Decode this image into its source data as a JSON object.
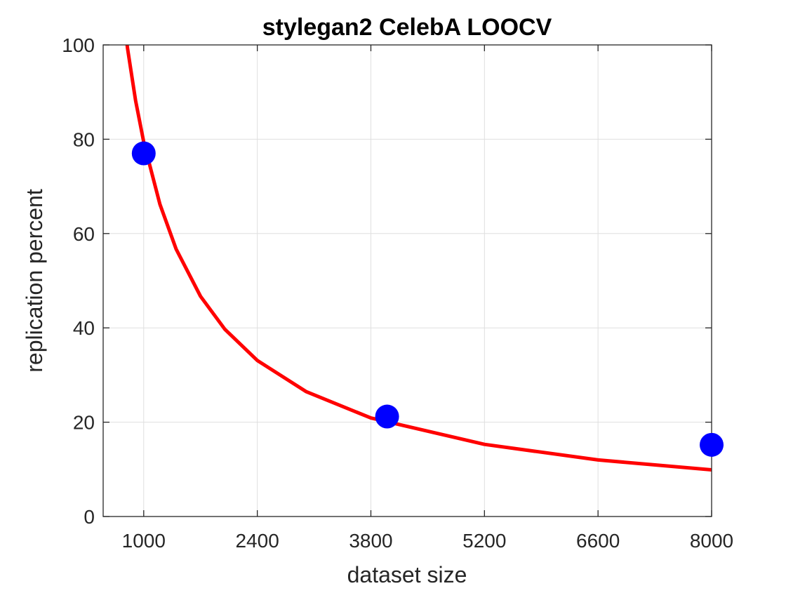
{
  "chart_data": {
    "type": "scatter",
    "title": "stylegan2 CelebA LOOCV",
    "xlabel": "dataset size",
    "ylabel": "replication percent",
    "xlim": [
      500,
      8000
    ],
    "ylim": [
      0,
      100
    ],
    "xticks": [
      1000,
      2400,
      3800,
      5200,
      6600,
      8000
    ],
    "yticks": [
      0,
      20,
      40,
      60,
      80,
      100
    ],
    "grid": true,
    "series": [
      {
        "type": "scatter",
        "color": "#0000ff",
        "points": [
          {
            "x": 1000,
            "y": 77
          },
          {
            "x": 4000,
            "y": 21.2
          },
          {
            "x": 8000,
            "y": 15.2
          }
        ]
      },
      {
        "type": "line",
        "color": "#ff0000",
        "points": [
          {
            "x": 700,
            "y": 113.3
          },
          {
            "x": 800,
            "y": 99.3
          },
          {
            "x": 900,
            "y": 88.2
          },
          {
            "x": 1000,
            "y": 79.4
          },
          {
            "x": 1200,
            "y": 66.2
          },
          {
            "x": 1400,
            "y": 56.7
          },
          {
            "x": 1700,
            "y": 46.7
          },
          {
            "x": 2000,
            "y": 39.7
          },
          {
            "x": 2400,
            "y": 33.1
          },
          {
            "x": 3000,
            "y": 26.5
          },
          {
            "x": 3800,
            "y": 20.9
          },
          {
            "x": 5200,
            "y": 15.3
          },
          {
            "x": 6600,
            "y": 12.0
          },
          {
            "x": 8000,
            "y": 9.9
          }
        ]
      }
    ]
  }
}
